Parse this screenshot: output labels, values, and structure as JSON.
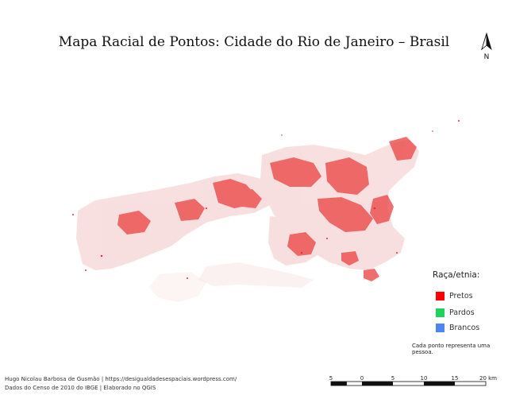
{
  "title": "Mapa Racial de Pontos: Cidade do Rio de Janeiro – Brasil",
  "north_arrow": {
    "label": "N",
    "icon": "north-arrow-icon"
  },
  "legend": {
    "title": "Raça/etnia:",
    "items": [
      {
        "label": "Pretos",
        "color": "#ff0000"
      },
      {
        "label": "Pardos",
        "color": "#1fd25a"
      },
      {
        "label": "Brancos",
        "color": "#4d86f0"
      }
    ]
  },
  "note": "Cada ponto representa uma pessoa.",
  "credits": {
    "line1": "Hugo Nicolau Barbosa de Gusmão | https://desigualdadesespaciais.wordpress.com/",
    "line2": "Dados do Censo de 2010 do IBGE | Elaborado no QGIS"
  },
  "scale_bar": {
    "ticks": [
      "5",
      "0",
      "5",
      "10",
      "15",
      "20 km"
    ]
  },
  "colors": {
    "pretos": "#ff0000",
    "light_dots": "#f2b8b8"
  }
}
